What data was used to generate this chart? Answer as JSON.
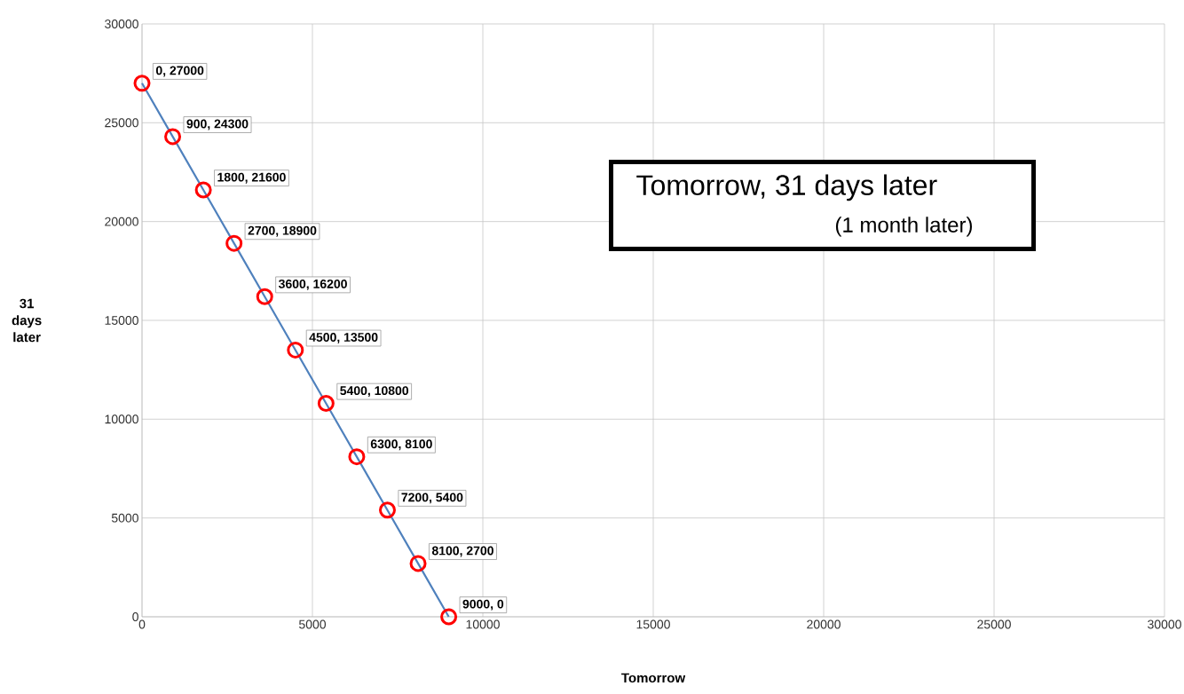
{
  "chart_data": {
    "type": "line",
    "title": "Tomorrow, 31 days later",
    "subtitle": "(1 month later)",
    "xlabel": "Tomorrow",
    "ylabel": "31 days later",
    "x": [
      0,
      900,
      1800,
      2700,
      3600,
      4500,
      5400,
      6300,
      7200,
      8100,
      9000
    ],
    "series": [
      {
        "color": "#4f81bd",
        "values": [
          27000,
          24300,
          21600,
          18900,
          16200,
          13500,
          10800,
          8100,
          5400,
          2700,
          0
        ],
        "value_labels": [
          "0, 27000",
          "900, 24300",
          "1800, 21600",
          "2700, 18900",
          "3600, 16200",
          "4500, 13500",
          "5400, 10800",
          "6300, 8100",
          "7200, 5400",
          "8100, 2700",
          "9000, 0"
        ]
      }
    ],
    "xlim": [
      0,
      30000
    ],
    "ylim": [
      0,
      30000
    ],
    "xticks": [
      0,
      5000,
      10000,
      15000,
      20000,
      25000,
      30000
    ],
    "yticks": [
      0,
      5000,
      10000,
      15000,
      20000,
      25000,
      30000
    ],
    "grid": true,
    "marker": "circle",
    "line_style": "solid"
  }
}
